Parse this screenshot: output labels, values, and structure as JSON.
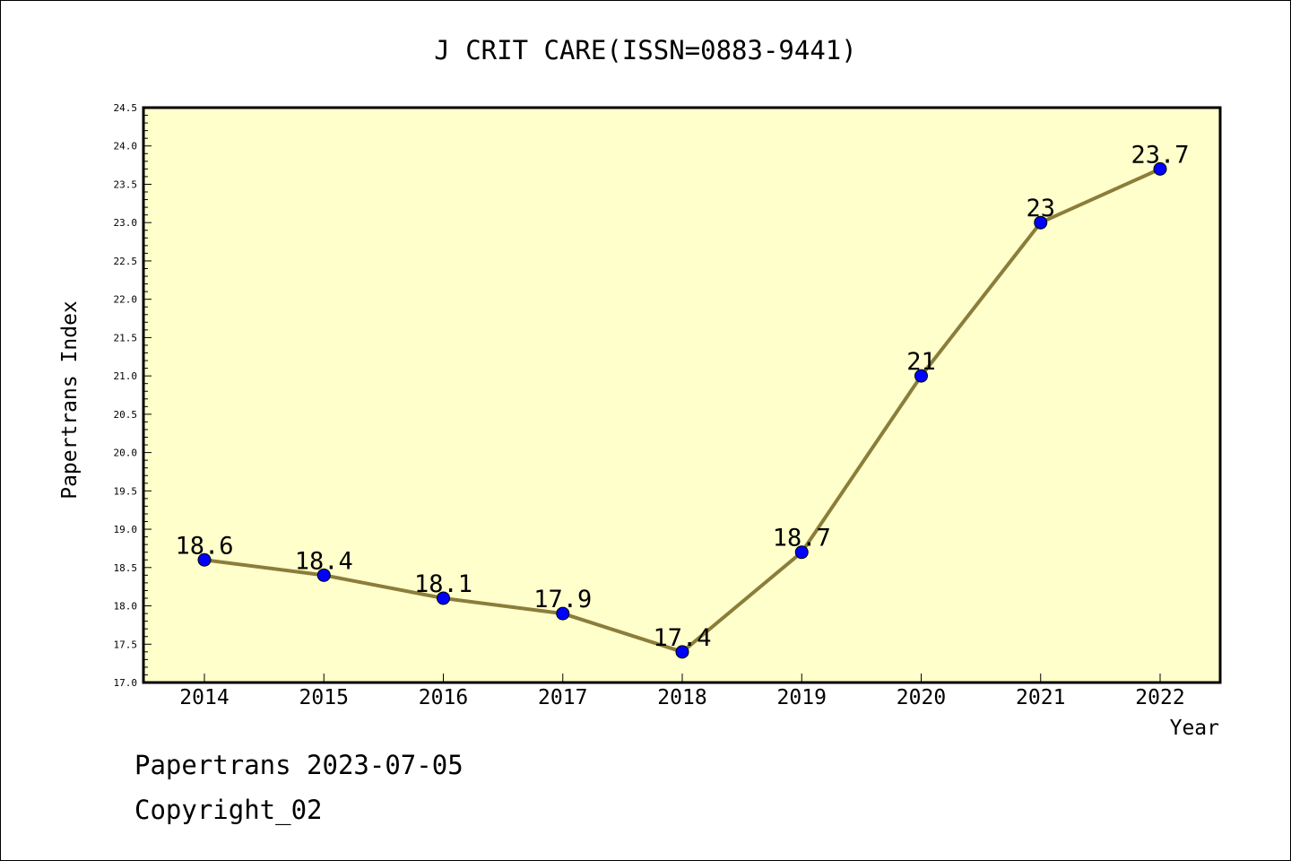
{
  "chart_data": {
    "type": "line",
    "title": "J CRIT CARE(ISSN=0883-9441)",
    "xlabel": "Year",
    "ylabel": "Papertrans Index",
    "categories": [
      "2014",
      "2015",
      "2016",
      "2017",
      "2018",
      "2019",
      "2020",
      "2021",
      "2022"
    ],
    "series": [
      {
        "values": [
          18.6,
          18.4,
          18.1,
          17.9,
          17.4,
          18.7,
          21,
          23,
          23.7
        ],
        "labels": [
          "18.6",
          "18.4",
          "18.1",
          "17.9",
          "17.4",
          "18.7",
          "21",
          "23",
          "23.7"
        ]
      }
    ],
    "ylim": [
      17.0,
      24.5
    ],
    "yticks": [
      "17.0",
      "17.5",
      "18.0",
      "18.5",
      "19.0",
      "19.5",
      "20.0",
      "20.5",
      "21.0",
      "21.5",
      "22.0",
      "22.5",
      "23.0",
      "23.5",
      "24.0",
      "24.5"
    ],
    "grid": false,
    "colors": {
      "plot_background": "#ffffcc",
      "line": "#8b7d3a",
      "marker": "#0000ff"
    }
  },
  "footer": {
    "line1": "Papertrans 2023-07-05",
    "line2": "Copyright_02"
  }
}
